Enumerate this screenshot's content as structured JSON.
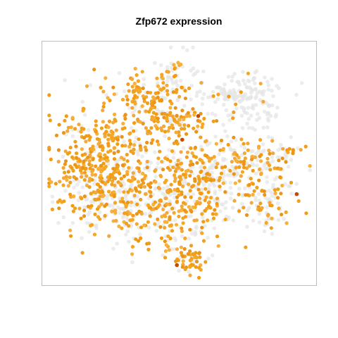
{
  "chart_data": {
    "type": "scatter",
    "title": "Zfp672 expression",
    "xlabel": "",
    "ylabel": "",
    "axes_visible": false,
    "grid": false,
    "legend": "none",
    "xlim": [
      0,
      100
    ],
    "ylim": [
      0,
      100
    ],
    "colors": {
      "low": "#e6e6e6",
      "mid": "#f5a623",
      "high": "#c44a00",
      "frame": "#bdbdbd"
    },
    "clusters": [
      {
        "name": "left-mass",
        "cx": 15,
        "cy": 52,
        "sx": 7,
        "sy": 13,
        "n": 260,
        "expr_frac": 0.85
      },
      {
        "name": "left-mid",
        "cx": 28,
        "cy": 46,
        "sx": 7,
        "sy": 12,
        "n": 230,
        "expr_frac": 0.78
      },
      {
        "name": "center-lower",
        "cx": 48,
        "cy": 28,
        "sx": 10,
        "sy": 9,
        "n": 240,
        "expr_frac": 0.62
      },
      {
        "name": "bottom-tip",
        "cx": 54,
        "cy": 9,
        "sx": 3,
        "sy": 3,
        "n": 50,
        "expr_frac": 0.8
      },
      {
        "name": "center",
        "cx": 50,
        "cy": 48,
        "sx": 8,
        "sy": 8,
        "n": 170,
        "expr_frac": 0.58
      },
      {
        "name": "top-left-arm",
        "cx": 36,
        "cy": 79,
        "sx": 7,
        "sy": 5,
        "n": 110,
        "expr_frac": 0.72
      },
      {
        "name": "top-peak",
        "cx": 49,
        "cy": 87,
        "sx": 4,
        "sy": 6,
        "n": 60,
        "expr_frac": 0.35
      },
      {
        "name": "top-mid",
        "cx": 46,
        "cy": 68,
        "sx": 7,
        "sy": 3,
        "n": 100,
        "expr_frac": 0.72
      },
      {
        "name": "top-right-cloud",
        "cx": 73,
        "cy": 77,
        "sx": 8,
        "sy": 6,
        "n": 180,
        "expr_frac": 0.1
      },
      {
        "name": "right-arm",
        "cx": 76,
        "cy": 50,
        "sx": 9,
        "sy": 5,
        "n": 160,
        "expr_frac": 0.5
      },
      {
        "name": "right-lower",
        "cx": 82,
        "cy": 34,
        "sx": 6,
        "sy": 6,
        "n": 100,
        "expr_frac": 0.35
      },
      {
        "name": "center-right",
        "cx": 63,
        "cy": 40,
        "sx": 6,
        "sy": 9,
        "n": 110,
        "expr_frac": 0.4
      },
      {
        "name": "right-tip",
        "cx": 91,
        "cy": 55,
        "sx": 2,
        "sy": 2,
        "n": 20,
        "expr_frac": 0.4
      },
      {
        "name": "gray-left-band",
        "cx": 25,
        "cy": 36,
        "sx": 9,
        "sy": 6,
        "n": 110,
        "expr_frac": 0.15
      }
    ],
    "high_points": [
      {
        "x": 51,
        "y": 60
      },
      {
        "x": 57,
        "y": 70
      },
      {
        "x": 94,
        "y": 37
      },
      {
        "x": 49,
        "y": 7
      }
    ]
  }
}
